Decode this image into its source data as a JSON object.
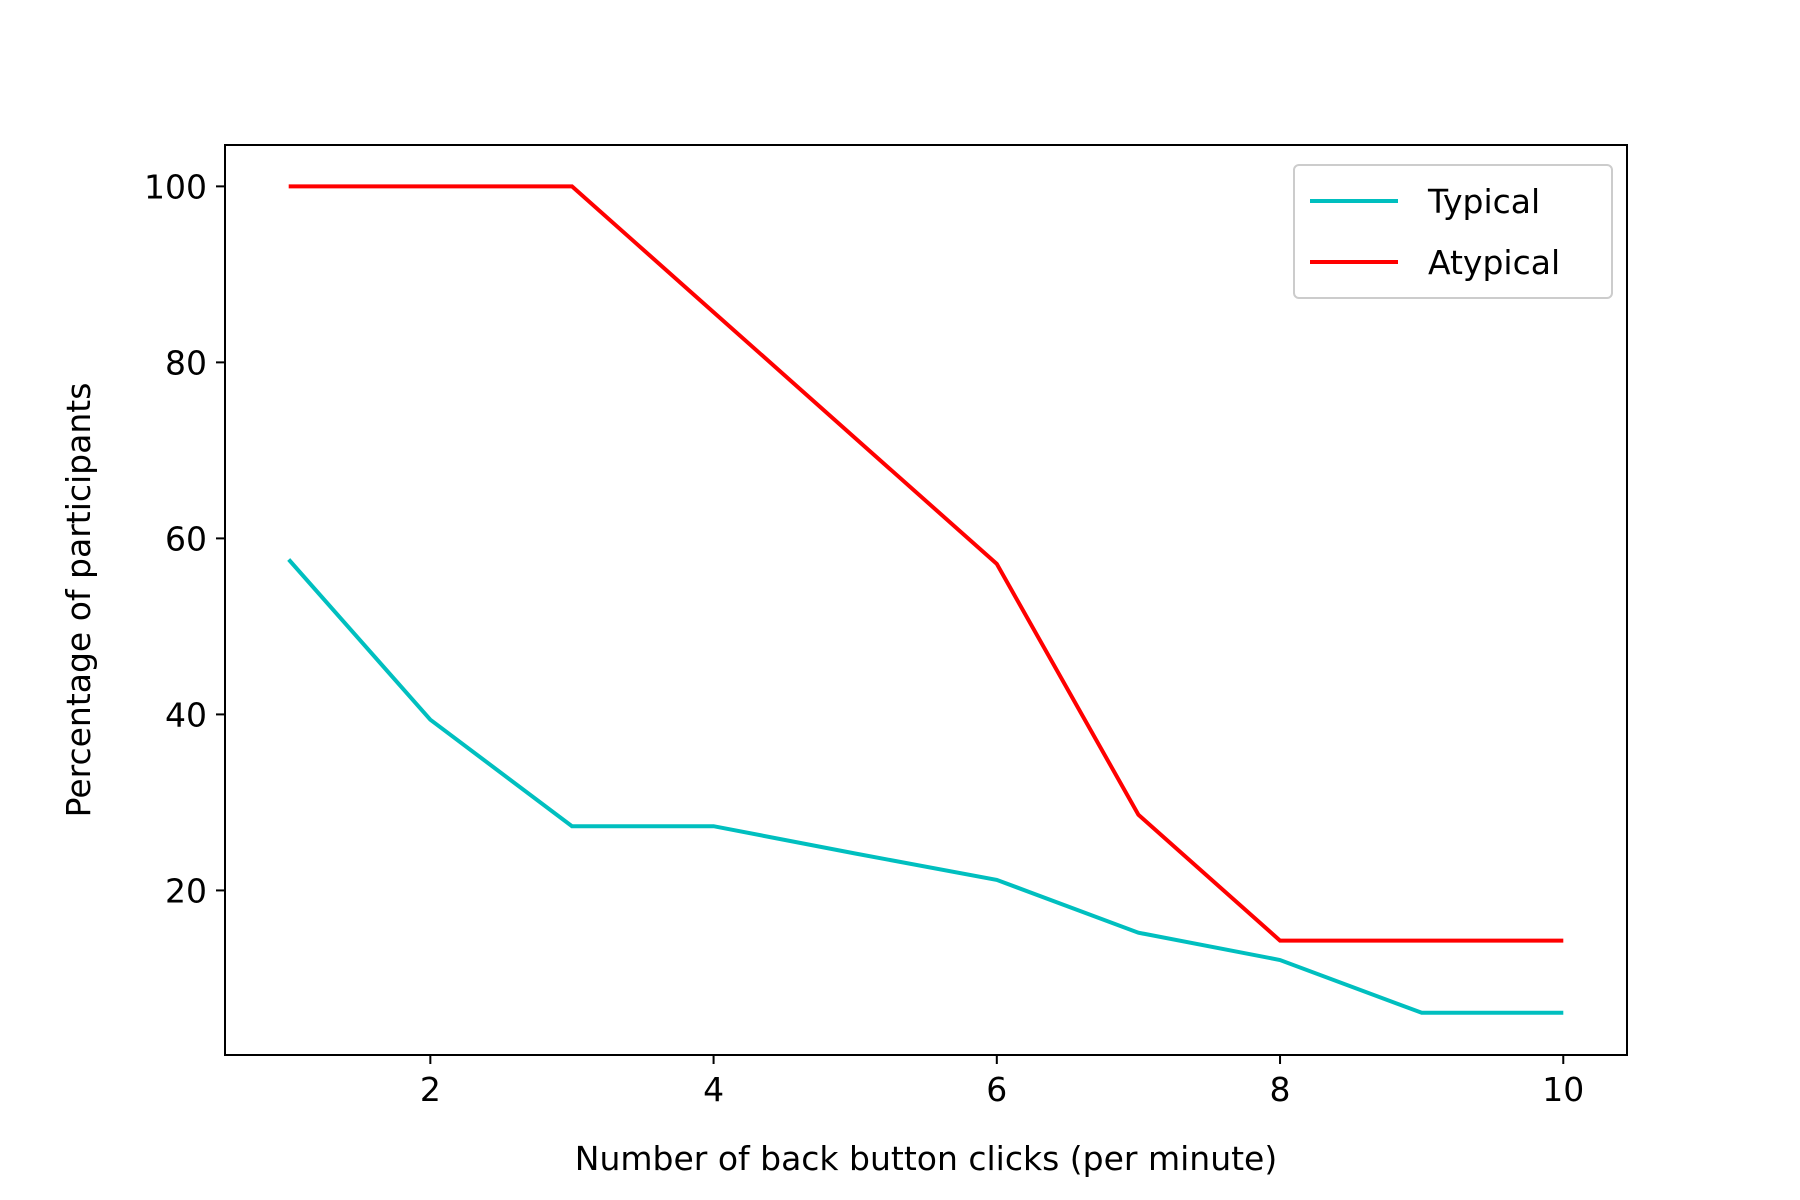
{
  "chart_data": {
    "type": "line",
    "title": "",
    "xlabel": "Number of back button clicks (per minute)",
    "ylabel": "Percentage of participants",
    "xlim": [
      0.55,
      10.45
    ],
    "ylim": [
      1.3,
      104.7
    ],
    "xticks": [
      2,
      4,
      6,
      8,
      10
    ],
    "yticks": [
      20,
      40,
      60,
      80,
      100
    ],
    "grid": false,
    "legend_position": "upper right",
    "series": [
      {
        "name": "Typical",
        "color": "#00bfbf",
        "x": [
          1,
          2,
          3,
          4,
          5,
          6,
          7,
          8,
          9,
          10
        ],
        "y": [
          57.6,
          39.4,
          27.3,
          27.3,
          24.2,
          21.2,
          15.2,
          12.1,
          6.1,
          6.1
        ]
      },
      {
        "name": "Atypical",
        "color": "#ff0000",
        "x": [
          1,
          2,
          3,
          4,
          5,
          6,
          7,
          8,
          9,
          10
        ],
        "y": [
          100,
          100,
          100,
          85.7,
          71.4,
          57.1,
          28.6,
          14.3,
          14.3,
          14.3
        ]
      }
    ]
  }
}
